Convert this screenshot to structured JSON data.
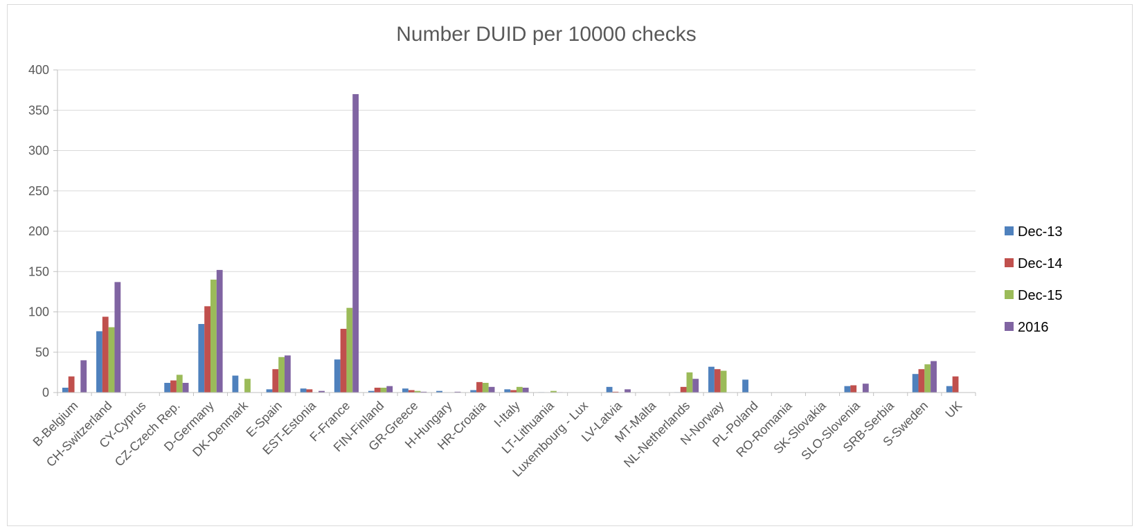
{
  "chart_data": {
    "type": "bar",
    "title": "Number DUID per 10000 checks",
    "xlabel": "",
    "ylabel": "",
    "ylim": [
      0,
      400
    ],
    "yticks": [
      0,
      50,
      100,
      150,
      200,
      250,
      300,
      350,
      400
    ],
    "grid": true,
    "legend_position": "right",
    "categories": [
      "B-Belgium",
      "CH-Switzerland",
      "CY-Cyprus",
      "CZ-Czech Rep.",
      "D-Germany",
      "DK-Denmark",
      "E-Spain",
      "EST-Estonia",
      "F-France",
      "FIN-Finland",
      "GR-Greece",
      "H-Hungary",
      "HR-Croatia",
      "I-Italy",
      "LT-Lithuania",
      "Luxembourg - Lux",
      "LV-Latvia",
      "MT-Malta",
      "NL-Netherlands",
      "N-Norway",
      "PL-Poland",
      "RO-Romania",
      "SK-Slovakia",
      "SLO-Slovenia",
      "SRB-Serbia",
      "S-Sweden",
      "UK"
    ],
    "series": [
      {
        "name": "Dec-13",
        "color": "#4f81bd",
        "values": [
          6,
          76,
          0,
          12,
          85,
          21,
          4,
          5,
          41,
          2,
          5,
          2,
          3,
          4,
          0.5,
          0,
          7,
          0,
          0.5,
          32,
          16,
          0,
          0,
          8,
          0,
          23,
          8
        ]
      },
      {
        "name": "Dec-14",
        "color": "#c0504d",
        "values": [
          20,
          94,
          0,
          15,
          107,
          0,
          29,
          4,
          79,
          6,
          3,
          0,
          13,
          3,
          0,
          0,
          1,
          0,
          7,
          29,
          0,
          0,
          0,
          9,
          0,
          29,
          20
        ]
      },
      {
        "name": "Dec-15",
        "color": "#9bbb59",
        "values": [
          0,
          81,
          0,
          22,
          140,
          17,
          44,
          0,
          105,
          6,
          2,
          0,
          12,
          7,
          2,
          0,
          0,
          0,
          25,
          27,
          0,
          0,
          0,
          0,
          0,
          35,
          0
        ]
      },
      {
        "name": "2016",
        "color": "#8064a2",
        "values": [
          40,
          137,
          0,
          12,
          152,
          0,
          46,
          2,
          370,
          8,
          1,
          1,
          7,
          6,
          0.5,
          0,
          4,
          0,
          17,
          0,
          0,
          0,
          0,
          11,
          0,
          39,
          0
        ]
      }
    ]
  }
}
